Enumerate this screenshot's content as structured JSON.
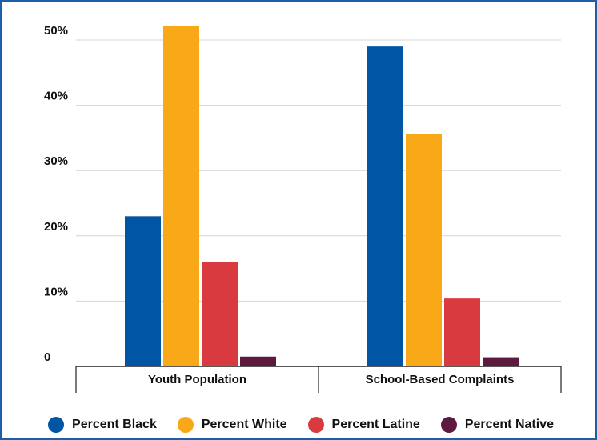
{
  "chart_data": {
    "type": "bar",
    "categories": [
      "Youth Population",
      "School-Based Complaints"
    ],
    "series": [
      {
        "name": "Percent Black",
        "color": "#0055a5",
        "values": [
          23,
          49
        ]
      },
      {
        "name": "Percent White",
        "color": "#f9a817",
        "values": [
          52.2,
          35.6
        ]
      },
      {
        "name": "Percent Latine",
        "color": "#d93a3f",
        "values": [
          16,
          10.4
        ]
      },
      {
        "name": "Percent Native",
        "color": "#5e1a3e",
        "values": [
          1.5,
          1.4
        ]
      }
    ],
    "yticks": [
      "0",
      "10%",
      "20%",
      "30%",
      "40%",
      "50%"
    ],
    "ytick_values": [
      0,
      10,
      20,
      30,
      40,
      50
    ],
    "ylim": [
      0,
      50
    ],
    "grid": true,
    "legend_position": "bottom"
  }
}
